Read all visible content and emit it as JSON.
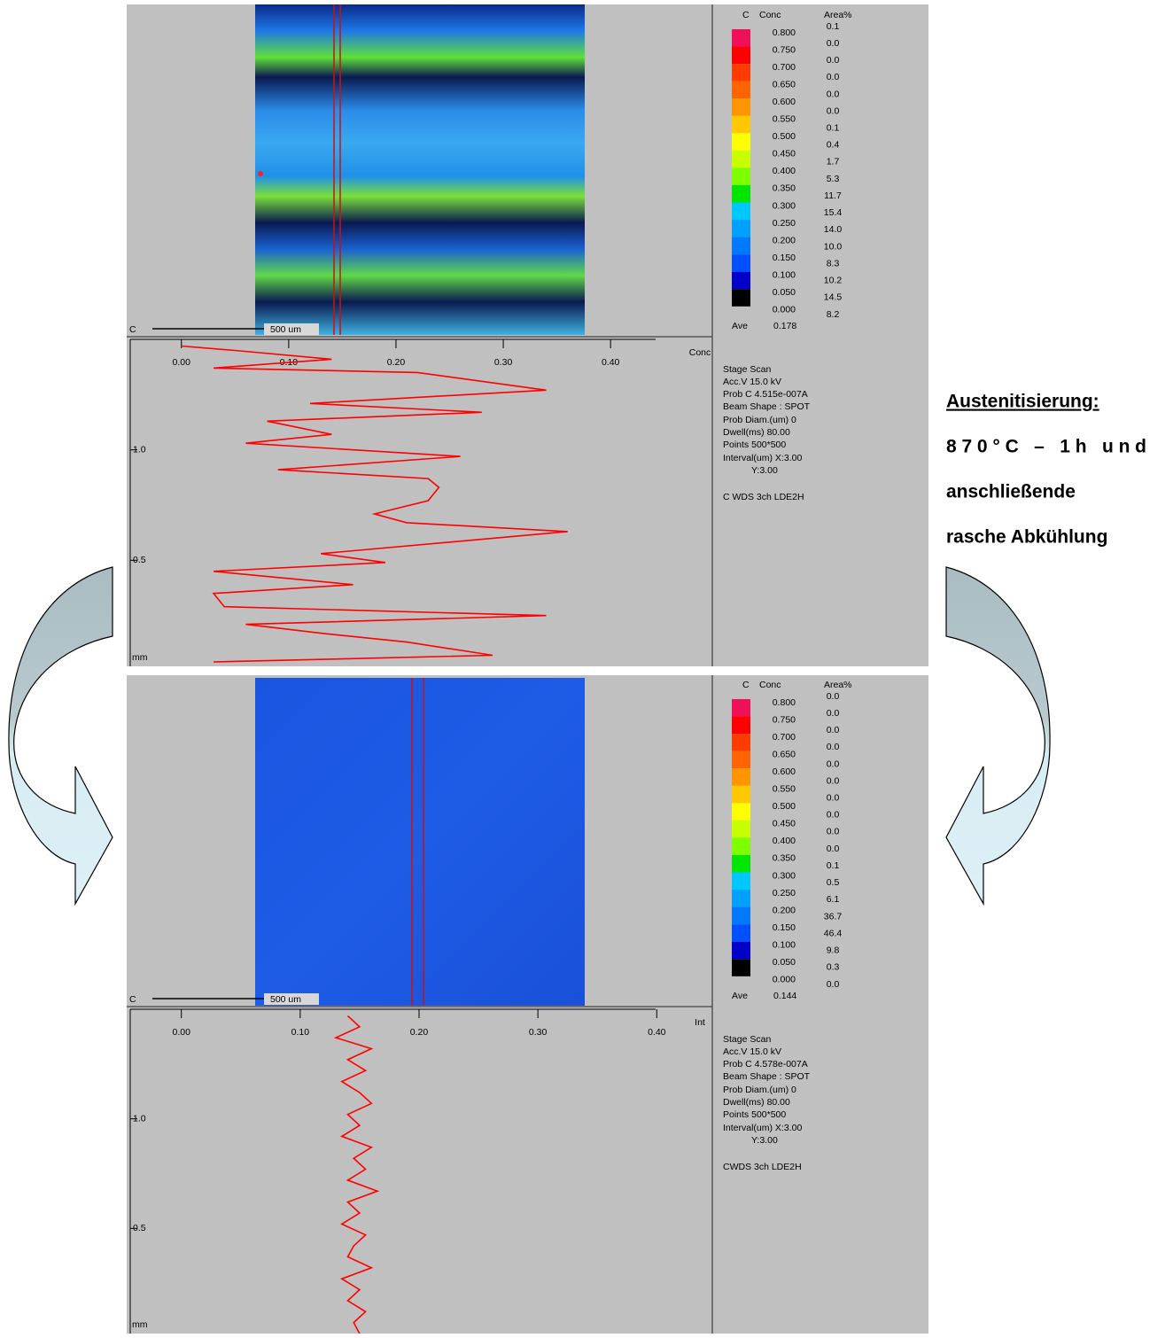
{
  "annotation": {
    "title": "Austenitisierung:",
    "lines": [
      "870°C – 1h und",
      "anschließende",
      "rasche Abkühlung"
    ]
  },
  "panels": [
    {
      "map_label": "C",
      "scale_bar": "500 um",
      "legend": {
        "headers": [
          "C",
          "Conc",
          "Area%"
        ],
        "levels": [
          "0.800",
          "0.750",
          "0.700",
          "0.650",
          "0.600",
          "0.550",
          "0.500",
          "0.450",
          "0.400",
          "0.350",
          "0.300",
          "0.250",
          "0.200",
          "0.150",
          "0.100",
          "0.050",
          "0.000"
        ],
        "colors": [
          "#f0105a",
          "#ff0000",
          "#ff3c00",
          "#ff6400",
          "#ff9600",
          "#ffc800",
          "#ffff00",
          "#c8ff00",
          "#7dff00",
          "#00e600",
          "#00c8ff",
          "#00a0ff",
          "#0078ff",
          "#0050ff",
          "#0000c8",
          "#000000"
        ],
        "area_percent": [
          "0.1",
          "0.0",
          "0.0",
          "0.0",
          "0.0",
          "0.0",
          "0.1",
          "0.4",
          "1.7",
          "5.3",
          "11.7",
          "15.4",
          "14.0",
          "10.0",
          "8.3",
          "10.2",
          "14.5",
          "8.2"
        ],
        "ave_label": "Ave",
        "ave": "0.178"
      },
      "info": [
        "Stage Scan",
        "Acc.V  15.0 kV",
        "Prob C 4.515e-007A",
        "Beam Shape : SPOT",
        "Prob Diam.(um) 0",
        "Dwell(ms) 80.00",
        "Points  500*500",
        "Interval(um) X:3.00",
        "Y:3.00",
        "C WDS  3ch  LDE2H"
      ],
      "profile": {
        "x_label": "Conc",
        "y_unit": "mm",
        "color": "#ff0000",
        "xlim": [
          -0.051,
          0.494
        ],
        "ylim": [
          0.02,
          1.5
        ],
        "xticks": [
          {
            "value": 0,
            "label": "0.00"
          },
          {
            "value": 0.1,
            "label": "0.10"
          },
          {
            "value": 0.2,
            "label": "0.20"
          },
          {
            "value": 0.3,
            "label": "0.30"
          },
          {
            "value": 0.4,
            "label": "0.40"
          }
        ],
        "yticks": [
          {
            "value": 1,
            "label": "1.0"
          },
          {
            "value": 0.5,
            "label": "0.5"
          }
        ],
        "positions": [
          1.47,
          1.45,
          1.41,
          1.37,
          1.35,
          1.27,
          1.21,
          1.17,
          1.13,
          1.07,
          1.03,
          0.97,
          0.91,
          0.87,
          0.83,
          0.77,
          0.71,
          0.67,
          0.63,
          0.53,
          0.49,
          0.45,
          0.39,
          0.35,
          0.29,
          0.25,
          0.21,
          0.17,
          0.13,
          0.07,
          0.04
        ],
        "values": [
          0.0,
          0.05,
          0.14,
          0.03,
          0.22,
          0.34,
          0.12,
          0.28,
          0.08,
          0.14,
          0.06,
          0.26,
          0.09,
          0.23,
          0.24,
          0.23,
          0.18,
          0.21,
          0.36,
          0.13,
          0.19,
          0.03,
          0.16,
          0.03,
          0.04,
          0.34,
          0.06,
          0.13,
          0.21,
          0.29,
          0.03
        ]
      }
    },
    {
      "map_label": "C",
      "scale_bar": "500 um",
      "legend": {
        "headers": [
          "C",
          "Conc",
          "Area%"
        ],
        "levels": [
          "0.800",
          "0.750",
          "0.700",
          "0.650",
          "0.600",
          "0.550",
          "0.500",
          "0.450",
          "0.400",
          "0.350",
          "0.300",
          "0.250",
          "0.200",
          "0.150",
          "0.100",
          "0.050",
          "0.000"
        ],
        "colors": [
          "#f0105a",
          "#ff0000",
          "#ff3c00",
          "#ff6400",
          "#ff9600",
          "#ffc800",
          "#ffff00",
          "#c8ff00",
          "#7dff00",
          "#00e600",
          "#00c8ff",
          "#00a0ff",
          "#0078ff",
          "#0050ff",
          "#0000c8",
          "#000000"
        ],
        "area_percent": [
          "0.0",
          "0.0",
          "0.0",
          "0.0",
          "0.0",
          "0.0",
          "0.0",
          "0.0",
          "0.0",
          "0.0",
          "0.1",
          "0.5",
          "6.1",
          "36.7",
          "46.4",
          "9.8",
          "0.3",
          "0.0"
        ],
        "ave_label": "Ave",
        "ave": "0.144"
      },
      "info": [
        "Stage Scan",
        "Acc.V  15.0 kV",
        "Prob C 4.578e-007A",
        "Beam Shape : SPOT",
        "Prob Diam.(um) 0",
        "Dwell(ms) 80.00",
        "Points  500*500",
        "Interval(um) X:3.00",
        "Y:3.00",
        "CWDS  3ch  LDE2H"
      ],
      "profile": {
        "x_label": "Int",
        "y_unit": "mm",
        "color": "#ff0000",
        "xlim": [
          -0.046,
          0.446
        ],
        "ylim": [
          0.02,
          1.5
        ],
        "xticks": [
          {
            "value": 0,
            "label": "0.00"
          },
          {
            "value": 0.1,
            "label": "0.10"
          },
          {
            "value": 0.2,
            "label": "0.20"
          },
          {
            "value": 0.3,
            "label": "0.30"
          },
          {
            "value": 0.4,
            "label": "0.40"
          }
        ],
        "yticks": [
          {
            "value": 1,
            "label": "1.0"
          },
          {
            "value": 0.5,
            "label": "0.5"
          }
        ],
        "positions": [
          1.47,
          1.42,
          1.37,
          1.32,
          1.27,
          1.22,
          1.17,
          1.12,
          1.07,
          1.02,
          0.97,
          0.92,
          0.87,
          0.82,
          0.77,
          0.72,
          0.67,
          0.62,
          0.57,
          0.52,
          0.47,
          0.42,
          0.37,
          0.32,
          0.27,
          0.22,
          0.17,
          0.12,
          0.07,
          0.02
        ],
        "values": [
          0.14,
          0.15,
          0.13,
          0.16,
          0.14,
          0.155,
          0.135,
          0.15,
          0.16,
          0.14,
          0.15,
          0.135,
          0.16,
          0.145,
          0.155,
          0.14,
          0.165,
          0.14,
          0.15,
          0.135,
          0.155,
          0.145,
          0.14,
          0.16,
          0.135,
          0.15,
          0.14,
          0.155,
          0.145,
          0.15
        ]
      }
    }
  ]
}
